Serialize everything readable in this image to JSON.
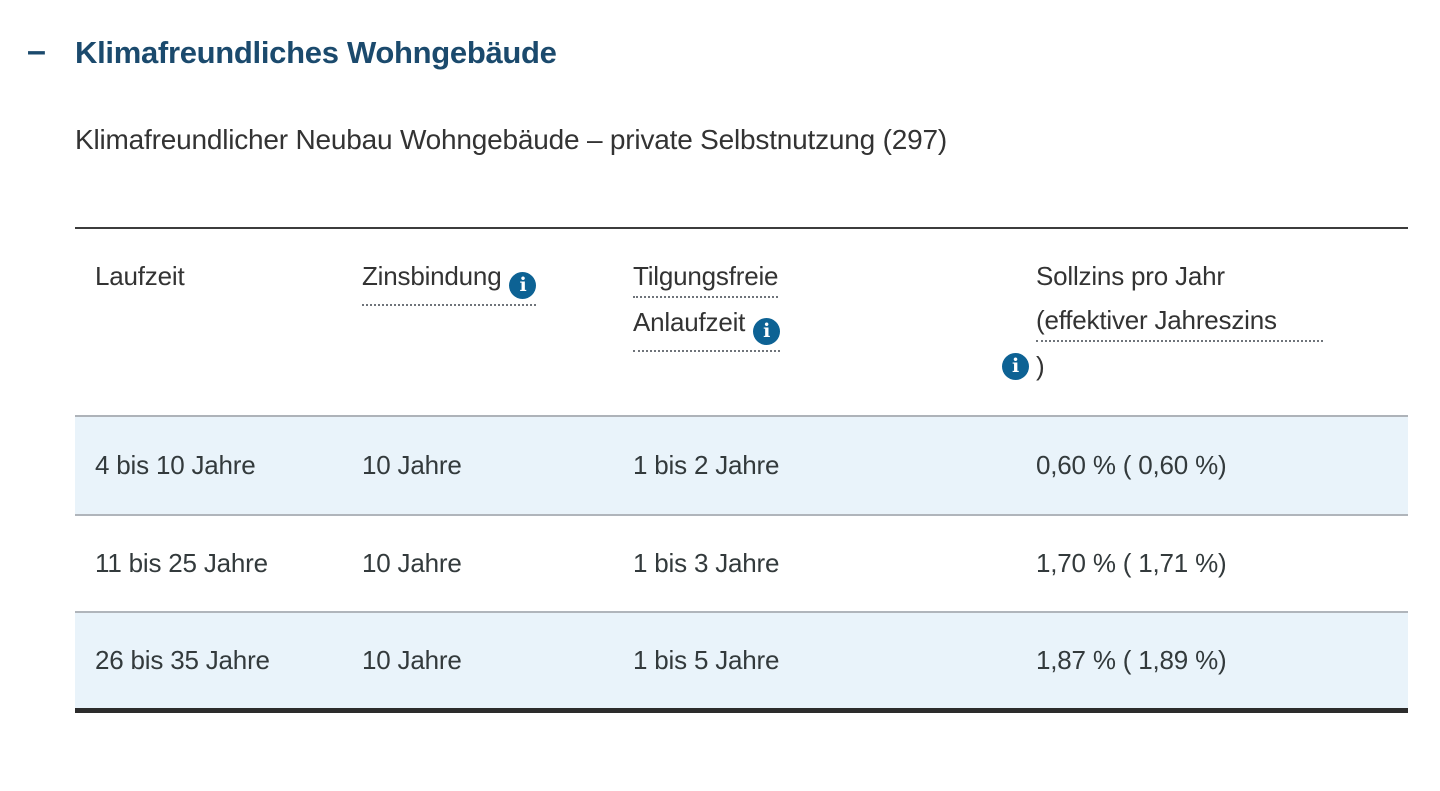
{
  "accordion": {
    "collapse_glyph": "–",
    "title": "Klimafreundliches Wohngebäude"
  },
  "program": {
    "title": "Klimafreundlicher Neubau Wohngebäude – private Selbstnutzung (297)"
  },
  "icons": {
    "info_glyph": "i"
  },
  "table": {
    "headers": {
      "laufzeit": "Laufzeit",
      "zinsbindung": "Zinsbindung",
      "tilgungsfreie_line1": "Tilgungsfreie",
      "tilgungsfreie_line2": "Anlaufzeit",
      "sollzins_line1": "Sollzins pro Jahr",
      "sollzins_line2": "(effektiver Jahreszins",
      "sollzins_line3": ")"
    },
    "rows": [
      {
        "laufzeit": "4 bis 10 Jahre",
        "zinsbindung": "10 Jahre",
        "anlaufzeit": "1 bis 2 Jahre",
        "sollzins": "0,60 % ( 0,60 %)"
      },
      {
        "laufzeit": "11 bis 25 Jahre",
        "zinsbindung": "10 Jahre",
        "anlaufzeit": "1 bis 3 Jahre",
        "sollzins": "1,70 % ( 1,71 %)"
      },
      {
        "laufzeit": "26 bis 35 Jahre",
        "zinsbindung": "10 Jahre",
        "anlaufzeit": "1 bis 5 Jahre",
        "sollzins": "1,87 % ( 1,89 %)"
      }
    ]
  },
  "colors": {
    "title_blue": "#1b4a6d",
    "info_icon_blue": "#0d6294",
    "row_highlight_blue": "#e9f3fa",
    "body_text": "#333333",
    "separator_gray": "#b0b5bb",
    "table_top_border": "#3c3c3c",
    "table_bottom_border": "#2c2c2c"
  }
}
